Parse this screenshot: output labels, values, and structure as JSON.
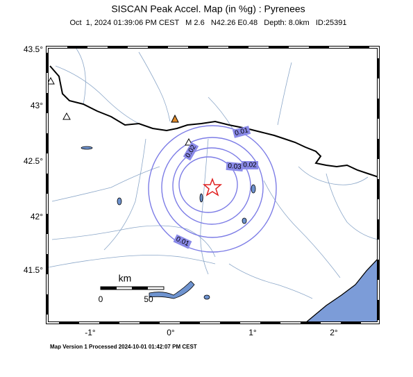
{
  "header": {
    "title": "SISCAN Peak Accel. Map (in %g) : Pyrenees",
    "subtitle": "Oct  1, 2024 01:39:06 PM CEST   M 2.6   N42.26 E0.48   Depth: 8.0km   ID:25391"
  },
  "axes": {
    "latitude_labels": [
      "43.5°",
      "43°",
      "42.5°",
      "42°",
      "41.5°"
    ],
    "longitude_labels": [
      "-1°",
      "0°",
      "1°",
      "2°"
    ]
  },
  "contours": {
    "labels": [
      "0.01",
      "0.02",
      "0.03",
      "0.02",
      "0.01"
    ]
  },
  "scale": {
    "unit": "km",
    "labels": [
      "0",
      "50"
    ]
  },
  "footer": "Map Version 1 Processed 2024-10-01 01:42:07 PM CEST"
}
